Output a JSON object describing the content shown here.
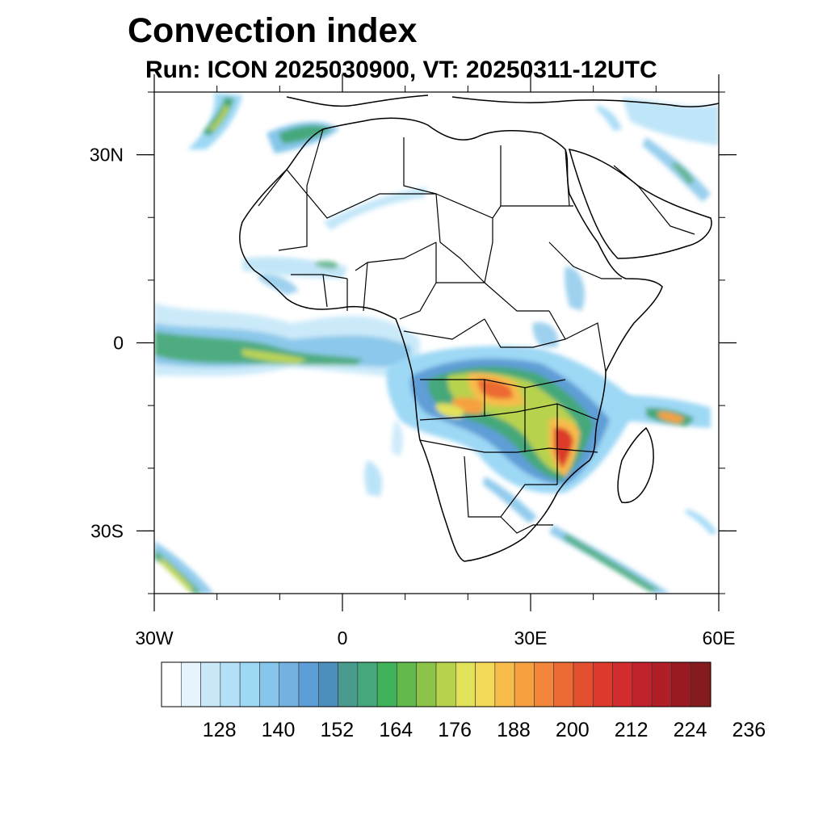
{
  "title": "Convection index",
  "subtitle": "Run: ICON 2025030900,  VT: 20250311-12UTC",
  "map": {
    "lon_range": [
      -30,
      60
    ],
    "lat_range": [
      -40,
      40
    ],
    "x_ticks": [
      {
        "lon": -30,
        "label": "30W"
      },
      {
        "lon": 0,
        "label": "0"
      },
      {
        "lon": 30,
        "label": "30E"
      },
      {
        "lon": 60,
        "label": "60E"
      }
    ],
    "y_ticks": [
      {
        "lat": 30,
        "label": "30N"
      },
      {
        "lat": 0,
        "label": "0"
      },
      {
        "lat": -30,
        "label": "30S"
      }
    ],
    "minor_tick_step_deg": 10
  },
  "colorbar": {
    "levels": [
      122,
      125,
      128,
      131,
      134,
      137,
      140,
      143,
      146,
      149,
      152,
      155,
      158,
      161,
      164,
      167,
      170,
      173,
      176,
      179,
      182,
      185,
      188,
      191,
      194,
      197,
      200,
      203,
      206,
      209,
      212,
      215,
      218,
      221,
      224,
      227,
      230,
      233,
      236
    ],
    "labeled": [
      "128",
      "140",
      "152",
      "164",
      "176",
      "188",
      "200",
      "212",
      "224",
      "236"
    ],
    "colors": [
      "#ffffff",
      "#e6f5fd",
      "#c9e9f9",
      "#b4e1f7",
      "#9dd8f5",
      "#86c6ea",
      "#73b2e0",
      "#5e9ed6",
      "#4c8fbf",
      "#4a9a8e",
      "#45a87a",
      "#3fb25a",
      "#62ba4c",
      "#8cc44a",
      "#b7d24d",
      "#e2e25a",
      "#f4d857",
      "#f8bc4b",
      "#f6a040",
      "#f2863a",
      "#ec6a33",
      "#e3502f",
      "#dc3b2c",
      "#d22c2c",
      "#c2222b",
      "#b01f27",
      "#9a1a22",
      "#841b1d"
    ]
  }
}
